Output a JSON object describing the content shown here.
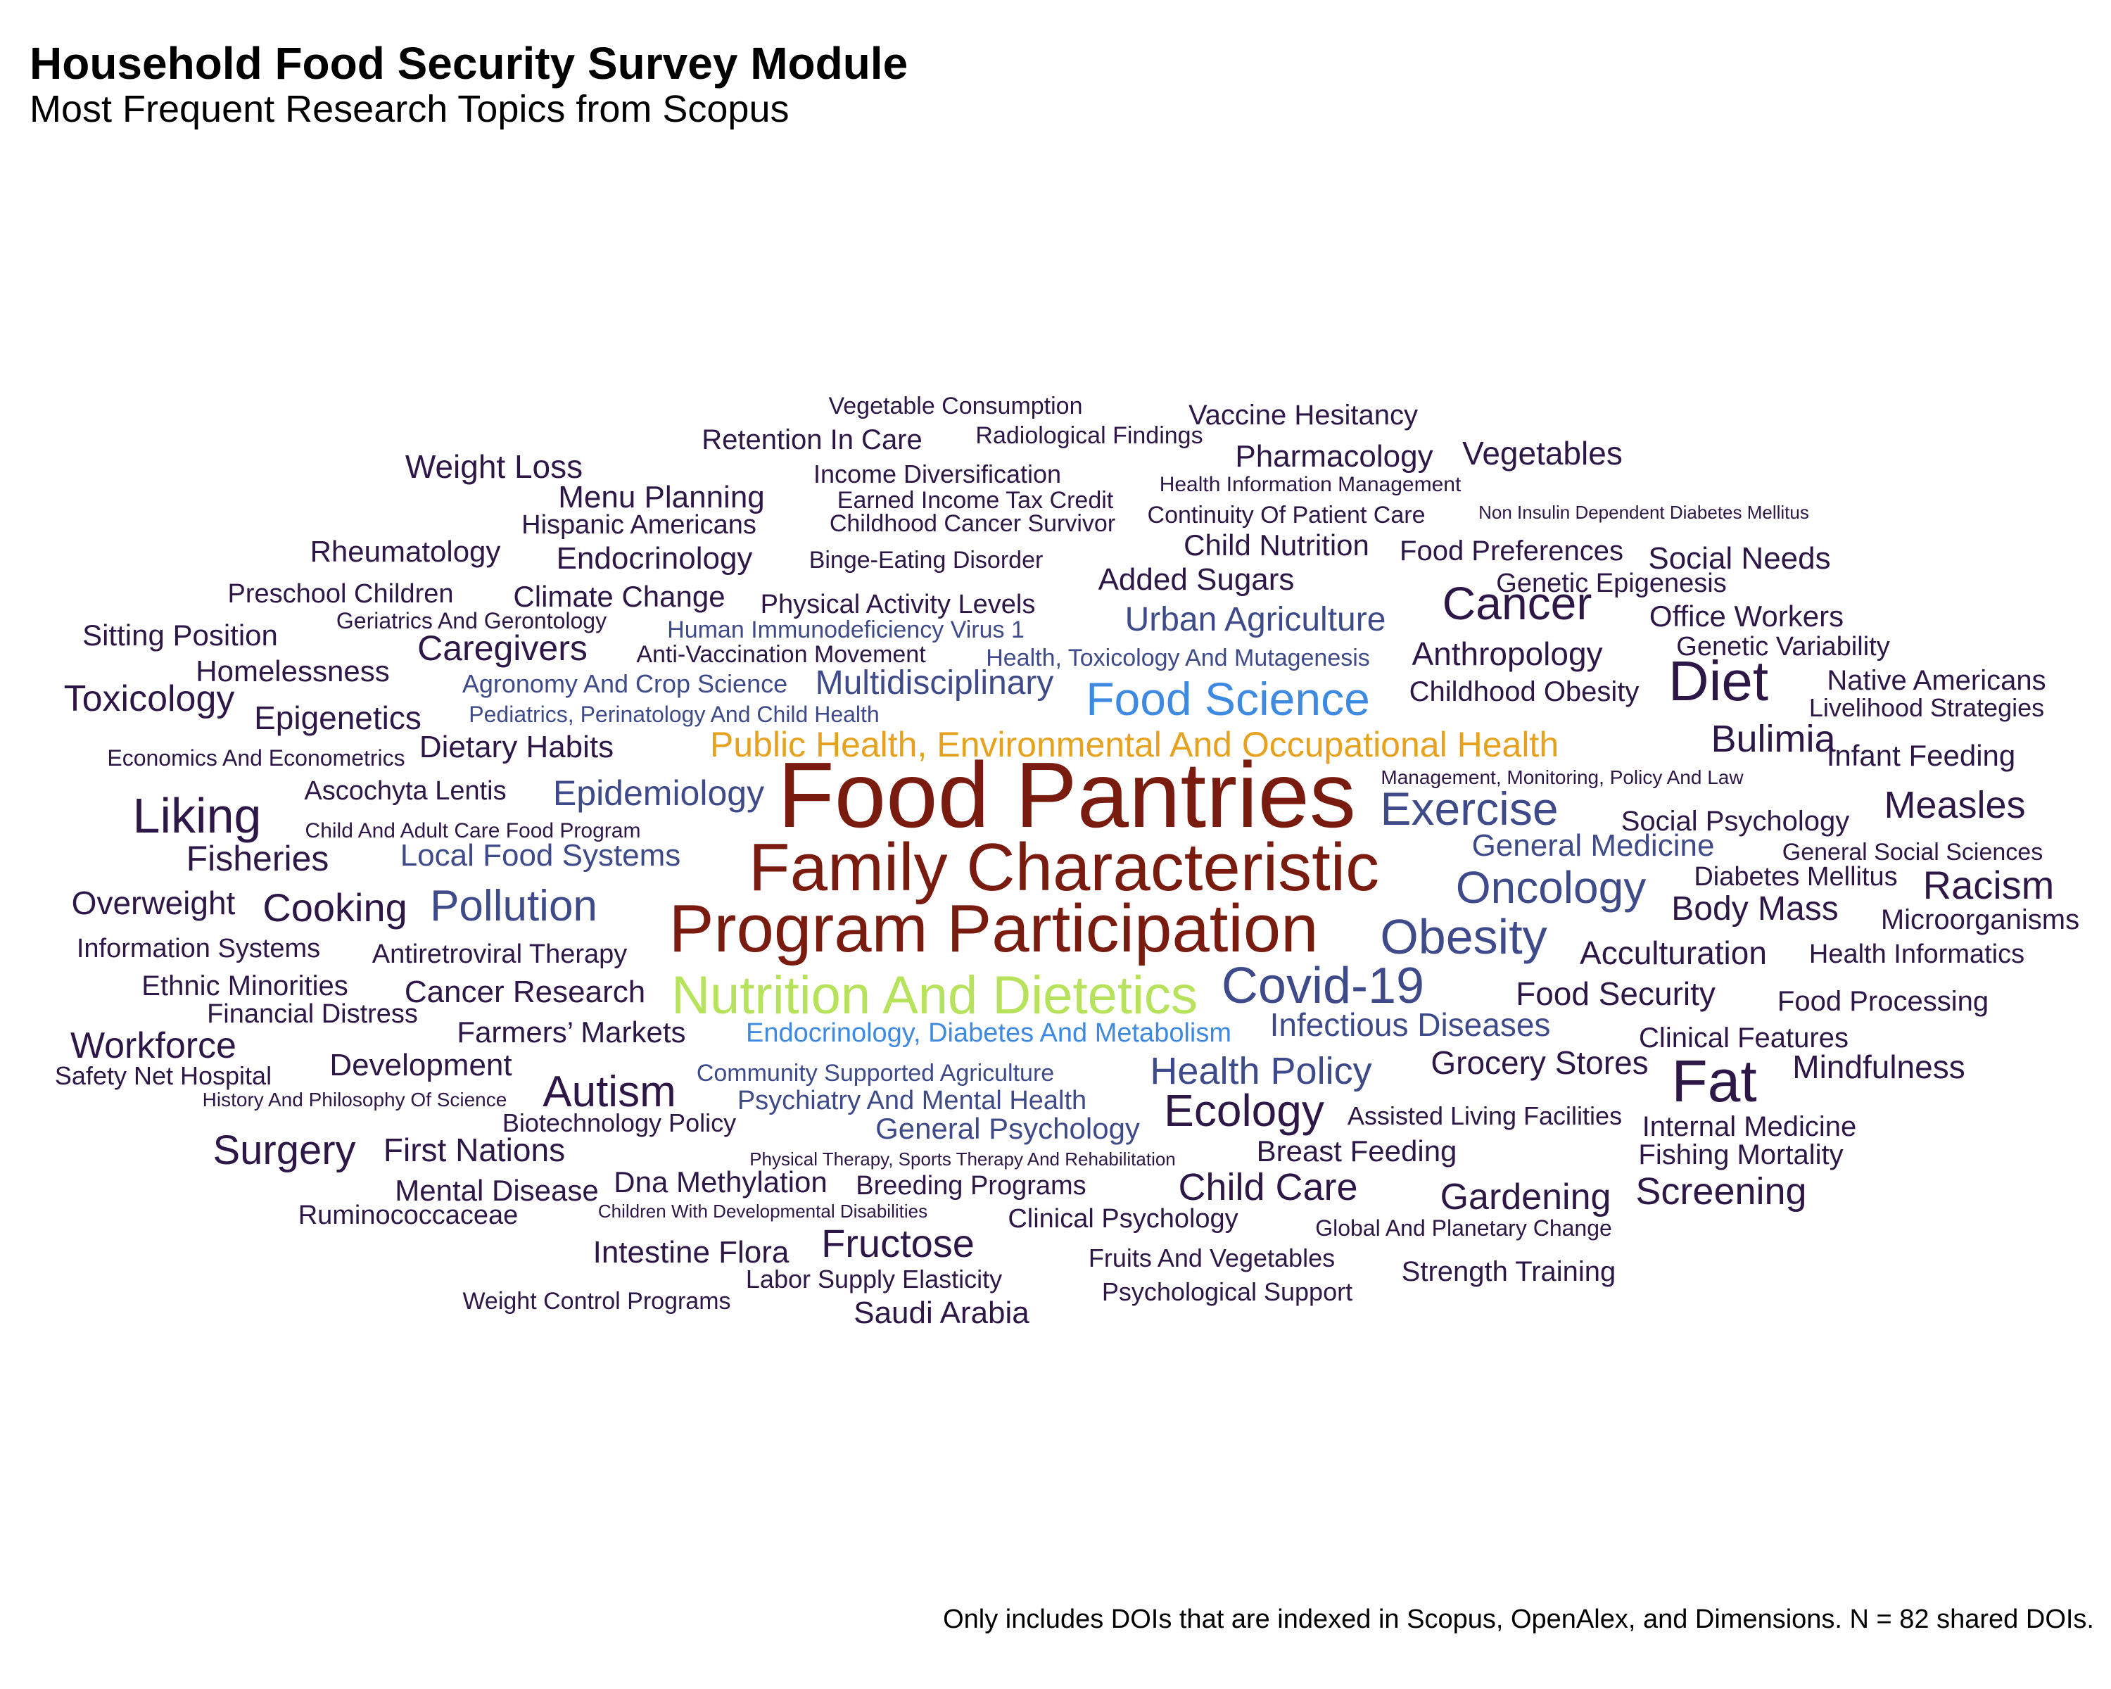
{
  "title": "Household Food Security Survey Module",
  "subtitle": "Most Frequent Research Topics from Scopus",
  "caption": "Only includes DOIs that are indexed in Scopus, OpenAlex, and Dimensions. N = 82 shared DOIs.",
  "chart_data": {
    "type": "wordcloud",
    "title": "Household Food Security Survey Module",
    "subtitle": "Most Frequent Research Topics from Scopus",
    "words": [
      {
        "text": "Food Pantries",
        "size": 6,
        "color": "#7a1b0f"
      },
      {
        "text": "Family Characteristic",
        "size": 5,
        "color": "#7a1b0f"
      },
      {
        "text": "Program Participation",
        "size": 5,
        "color": "#7a1b0f"
      },
      {
        "text": "Public Health, Environmental And Occupational Health",
        "size": 4,
        "color": "#e6a21e"
      },
      {
        "text": "Nutrition And Dietetics",
        "size": 4,
        "color": "#b7e35c"
      },
      {
        "text": "Food Science",
        "size": 4,
        "color": "#3e8ae3"
      },
      {
        "text": "Endocrinology, Diabetes And Metabolism",
        "size": 3,
        "color": "#3e8ae3"
      },
      {
        "text": "Covid-19",
        "size": 4,
        "color": "#3f4a8a"
      },
      {
        "text": "Obesity",
        "size": 4,
        "color": "#3f4a8a"
      },
      {
        "text": "Exercise",
        "size": 4,
        "color": "#3f4a8a"
      },
      {
        "text": "Oncology",
        "size": 4,
        "color": "#3f4a8a"
      },
      {
        "text": "Pollution",
        "size": 4,
        "color": "#3f4a8a"
      },
      {
        "text": "Multidisciplinary",
        "size": 3,
        "color": "#3f4a8a"
      },
      {
        "text": "Health Policy",
        "size": 3,
        "color": "#3f4a8a"
      },
      {
        "text": "Urban Agriculture",
        "size": 3,
        "color": "#3f4a8a"
      },
      {
        "text": "Epidemiology",
        "size": 3,
        "color": "#3f4a8a"
      },
      {
        "text": "Local Food Systems",
        "size": 3,
        "color": "#3f4a8a"
      },
      {
        "text": "Infectious Diseases",
        "size": 3,
        "color": "#3f4a8a"
      },
      {
        "text": "General Medicine",
        "size": 3,
        "color": "#3f4a8a"
      },
      {
        "text": "General Psychology",
        "size": 3,
        "color": "#3f4a8a"
      },
      {
        "text": "Psychiatry And Mental Health",
        "size": 2,
        "color": "#3f4a8a"
      },
      {
        "text": "Community Supported Agriculture",
        "size": 2,
        "color": "#3f4a8a"
      },
      {
        "text": "Human Immunodeficiency Virus 1",
        "size": 2,
        "color": "#3f4a8a"
      },
      {
        "text": "Health, Toxicology And Mutagenesis",
        "size": 2,
        "color": "#3f4a8a"
      },
      {
        "text": "Pediatrics, Perinatology And Child Health",
        "size": 2,
        "color": "#3f4a8a"
      },
      {
        "text": "Agronomy And Crop Science",
        "size": 2,
        "color": "#3f4a8a"
      },
      {
        "text": "Diet",
        "size": 4,
        "color": "#2d1747"
      },
      {
        "text": "Fat",
        "size": 4,
        "color": "#2d1747"
      },
      {
        "text": "Cancer",
        "size": 4,
        "color": "#2d1747"
      },
      {
        "text": "Liking",
        "size": 4,
        "color": "#2d1747"
      },
      {
        "text": "Autism",
        "size": 4,
        "color": "#2d1747"
      },
      {
        "text": "Ecology",
        "size": 4,
        "color": "#2d1747"
      },
      {
        "text": "Racism",
        "size": 3,
        "color": "#2d1747"
      },
      {
        "text": "Surgery",
        "size": 3,
        "color": "#2d1747"
      },
      {
        "text": "Bulimia",
        "size": 3,
        "color": "#2d1747"
      },
      {
        "text": "Measles",
        "size": 3,
        "color": "#2d1747"
      },
      {
        "text": "Fructose",
        "size": 3,
        "color": "#2d1747"
      },
      {
        "text": "Cooking",
        "size": 3,
        "color": "#2d1747"
      },
      {
        "text": "Toxicology",
        "size": 3,
        "color": "#2d1747"
      },
      {
        "text": "Workforce",
        "size": 3,
        "color": "#2d1747"
      },
      {
        "text": "Screening",
        "size": 3,
        "color": "#2d1747"
      },
      {
        "text": "Gardening",
        "size": 3,
        "color": "#2d1747"
      },
      {
        "text": "Child Care",
        "size": 3,
        "color": "#2d1747"
      },
      {
        "text": "Body Mass",
        "size": 3,
        "color": "#2d1747"
      },
      {
        "text": "Fisheries",
        "size": 3,
        "color": "#2d1747"
      },
      {
        "text": "Caregivers",
        "size": 3,
        "color": "#2d1747"
      },
      {
        "text": "Weight Loss",
        "size": 3,
        "color": "#2d1747"
      },
      {
        "text": "Anthropology",
        "size": 3,
        "color": "#2d1747"
      },
      {
        "text": "Epigenetics",
        "size": 3,
        "color": "#2d1747"
      },
      {
        "text": "Food Security",
        "size": 3,
        "color": "#2d1747"
      },
      {
        "text": "Mindfulness",
        "size": 3,
        "color": "#2d1747"
      },
      {
        "text": "Acculturation",
        "size": 3,
        "color": "#2d1747"
      },
      {
        "text": "Grocery Stores",
        "size": 3,
        "color": "#2d1747"
      },
      {
        "text": "Overweight",
        "size": 3,
        "color": "#2d1747"
      },
      {
        "text": "First Nations",
        "size": 3,
        "color": "#2d1747"
      },
      {
        "text": "Development",
        "size": 3,
        "color": "#2d1747"
      },
      {
        "text": "Cancer Research",
        "size": 3,
        "color": "#2d1747"
      },
      {
        "text": "Dietary Habits",
        "size": 3,
        "color": "#2d1747"
      },
      {
        "text": "Endocrinology",
        "size": 3,
        "color": "#2d1747"
      },
      {
        "text": "Menu Planning",
        "size": 3,
        "color": "#2d1747"
      },
      {
        "text": "Climate Change",
        "size": 3,
        "color": "#2d1747"
      },
      {
        "text": "Rheumatology",
        "size": 3,
        "color": "#2d1747"
      },
      {
        "text": "Homelessness",
        "size": 3,
        "color": "#2d1747"
      },
      {
        "text": "Sitting Position",
        "size": 3,
        "color": "#2d1747"
      },
      {
        "text": "Social Needs",
        "size": 3,
        "color": "#2d1747"
      },
      {
        "text": "Vegetables",
        "size": 3,
        "color": "#2d1747"
      },
      {
        "text": "Pharmacology",
        "size": 3,
        "color": "#2d1747"
      },
      {
        "text": "Added Sugars",
        "size": 3,
        "color": "#2d1747"
      },
      {
        "text": "Child Nutrition",
        "size": 3,
        "color": "#2d1747"
      },
      {
        "text": "Office Workers",
        "size": 3,
        "color": "#2d1747"
      },
      {
        "text": "Infant Feeding",
        "size": 3,
        "color": "#2d1747"
      },
      {
        "text": "Native Americans",
        "size": 3,
        "color": "#2d1747"
      },
      {
        "text": "Social Psychology",
        "size": 3,
        "color": "#2d1747"
      },
      {
        "text": "Microorganisms",
        "size": 3,
        "color": "#2d1747"
      },
      {
        "text": "Health Informatics",
        "size": 3,
        "color": "#2d1747"
      },
      {
        "text": "Internal Medicine",
        "size": 3,
        "color": "#2d1747"
      },
      {
        "text": "Fishing Mortality",
        "size": 3,
        "color": "#2d1747"
      },
      {
        "text": "Breast Feeding",
        "size": 3,
        "color": "#2d1747"
      },
      {
        "text": "Clinical Features",
        "size": 3,
        "color": "#2d1747"
      },
      {
        "text": "Food Processing",
        "size": 3,
        "color": "#2d1747"
      },
      {
        "text": "Diabetes Mellitus",
        "size": 3,
        "color": "#2d1747"
      },
      {
        "text": "Childhood Obesity",
        "size": 3,
        "color": "#2d1747"
      },
      {
        "text": "Genetic Variability",
        "size": 2,
        "color": "#2d1747"
      },
      {
        "text": "Livelihood Strategies",
        "size": 2,
        "color": "#2d1747"
      },
      {
        "text": "General Social Sciences",
        "size": 2,
        "color": "#2d1747"
      },
      {
        "text": "Genetic Epigenesis",
        "size": 2,
        "color": "#2d1747"
      },
      {
        "text": "Food Preferences",
        "size": 2,
        "color": "#2d1747"
      },
      {
        "text": "Farmers’ Markets",
        "size": 3,
        "color": "#2d1747"
      },
      {
        "text": "Financial Distress",
        "size": 2,
        "color": "#2d1747"
      },
      {
        "text": "Ethnic Minorities",
        "size": 2,
        "color": "#2d1747"
      },
      {
        "text": "Information Systems",
        "size": 2,
        "color": "#2d1747"
      },
      {
        "text": "Antiretroviral Therapy",
        "size": 2,
        "color": "#2d1747"
      },
      {
        "text": "Ascochyta Lentis",
        "size": 2,
        "color": "#2d1747"
      },
      {
        "text": "Economics And Econometrics",
        "size": 2,
        "color": "#2d1747"
      },
      {
        "text": "Preschool Children",
        "size": 2,
        "color": "#2d1747"
      },
      {
        "text": "Geriatrics And Gerontology",
        "size": 2,
        "color": "#2d1747"
      },
      {
        "text": "Hispanic Americans",
        "size": 2,
        "color": "#2d1747"
      },
      {
        "text": "Retention In Care",
        "size": 2,
        "color": "#2d1747"
      },
      {
        "text": "Vegetable Consumption",
        "size": 2,
        "color": "#2d1747"
      },
      {
        "text": "Radiological Findings",
        "size": 2,
        "color": "#2d1747"
      },
      {
        "text": "Income Diversification",
        "size": 2,
        "color": "#2d1747"
      },
      {
        "text": "Earned Income Tax Credit",
        "size": 2,
        "color": "#2d1747"
      },
      {
        "text": "Childhood Cancer Survivor",
        "size": 2,
        "color": "#2d1747"
      },
      {
        "text": "Binge-Eating Disorder",
        "size": 2,
        "color": "#2d1747"
      },
      {
        "text": "Physical Activity Levels",
        "size": 2,
        "color": "#2d1747"
      },
      {
        "text": "Anti-Vaccination Movement",
        "size": 2,
        "color": "#2d1747"
      },
      {
        "text": "Vaccine Hesitancy",
        "size": 2,
        "color": "#2d1747"
      },
      {
        "text": "Health Information Management",
        "size": 2,
        "color": "#2d1747"
      },
      {
        "text": "Continuity Of Patient Care",
        "size": 2,
        "color": "#2d1747"
      },
      {
        "text": "Non Insulin Dependent Diabetes Mellitus",
        "size": 2,
        "color": "#2d1747"
      },
      {
        "text": "Management, Monitoring, Policy And Law",
        "size": 2,
        "color": "#2d1747"
      },
      {
        "text": "Child And Adult Care Food Program",
        "size": 2,
        "color": "#2d1747"
      },
      {
        "text": "Safety Net Hospital",
        "size": 2,
        "color": "#2d1747"
      },
      {
        "text": "History And Philosophy Of Science",
        "size": 2,
        "color": "#2d1747"
      },
      {
        "text": "Biotechnology Policy",
        "size": 2,
        "color": "#2d1747"
      },
      {
        "text": "Physical Therapy, Sports Therapy And Rehabilitation",
        "size": 1,
        "color": "#2d1747"
      },
      {
        "text": "Assisted Living Facilities",
        "size": 2,
        "color": "#2d1747"
      },
      {
        "text": "Mental Disease",
        "size": 3,
        "color": "#2d1747"
      },
      {
        "text": "Dna Methylation",
        "size": 3,
        "color": "#2d1747"
      },
      {
        "text": "Breeding Programs",
        "size": 2,
        "color": "#2d1747"
      },
      {
        "text": "Ruminococcaceae",
        "size": 2,
        "color": "#2d1747"
      },
      {
        "text": "Children With Developmental Disabilities",
        "size": 1,
        "color": "#2d1747"
      },
      {
        "text": "Clinical Psychology",
        "size": 2,
        "color": "#2d1747"
      },
      {
        "text": "Global And Planetary Change",
        "size": 2,
        "color": "#2d1747"
      },
      {
        "text": "Intestine Flora",
        "size": 3,
        "color": "#2d1747"
      },
      {
        "text": "Fruits And Vegetables",
        "size": 2,
        "color": "#2d1747"
      },
      {
        "text": "Strength Training",
        "size": 2,
        "color": "#2d1747"
      },
      {
        "text": "Labor Supply Elasticity",
        "size": 2,
        "color": "#2d1747"
      },
      {
        "text": "Psychological Support",
        "size": 2,
        "color": "#2d1747"
      },
      {
        "text": "Weight Control Programs",
        "size": 2,
        "color": "#2d1747"
      },
      {
        "text": "Saudi Arabia",
        "size": 3,
        "color": "#2d1747"
      }
    ]
  }
}
